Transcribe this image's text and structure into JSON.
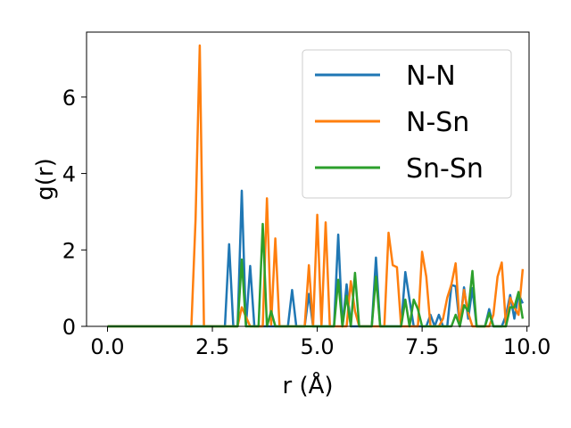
{
  "chart_data": {
    "type": "line",
    "title": "",
    "xlabel": "r (Å)",
    "ylabel": "g(r)",
    "xlim": [
      -0.5,
      10.05
    ],
    "ylim": [
      0,
      7.7
    ],
    "xticks": [
      0.0,
      2.5,
      5.0,
      7.5,
      10.0
    ],
    "xtick_labels": [
      "0.0",
      "2.5",
      "5.0",
      "7.5",
      "10.0"
    ],
    "yticks": [
      0,
      2,
      4,
      6
    ],
    "ytick_labels": [
      "0",
      "2",
      "4",
      "6"
    ],
    "grid": false,
    "legend_position": "top-right",
    "series": [
      {
        "name": "N-N",
        "color": "#1f77b4",
        "x": [
          0.0,
          2.8,
          2.9,
          3.0,
          3.1,
          3.2,
          3.3,
          3.4,
          3.5,
          4.3,
          4.4,
          4.5,
          4.7,
          4.8,
          4.9,
          5.4,
          5.5,
          5.6,
          5.7,
          5.8,
          6.3,
          6.4,
          6.5,
          7.0,
          7.1,
          7.2,
          7.3,
          7.6,
          7.7,
          7.8,
          7.9,
          8.0,
          8.1,
          8.2,
          8.3,
          8.4,
          8.5,
          8.6,
          8.7,
          8.8,
          8.9,
          9.0,
          9.1,
          9.2,
          9.3,
          9.4,
          9.5,
          9.6,
          9.7,
          9.8,
          9.9
        ],
        "y": [
          0,
          0,
          2.15,
          0,
          0,
          3.55,
          0,
          1.58,
          0,
          0,
          0.95,
          0,
          0,
          0.85,
          0,
          0,
          2.4,
          0,
          1.1,
          0,
          0,
          1.8,
          0,
          0,
          1.42,
          0.7,
          0,
          0,
          0.3,
          0,
          0.3,
          0,
          0,
          1.08,
          1.05,
          0,
          1.02,
          0.2,
          1.0,
          0,
          0,
          0,
          0.45,
          0,
          0,
          0,
          0.28,
          0.82,
          0.2,
          0.85,
          0.6
        ]
      },
      {
        "name": "N-Sn",
        "color": "#ff7f0e",
        "x": [
          0.0,
          2.0,
          2.1,
          2.2,
          2.3,
          3.0,
          3.1,
          3.2,
          3.4,
          3.5,
          3.6,
          3.7,
          3.8,
          3.9,
          4.0,
          4.1,
          4.7,
          4.8,
          4.9,
          5.0,
          5.1,
          5.2,
          5.3,
          5.4,
          5.5,
          5.6,
          5.7,
          5.8,
          5.9,
          6.0,
          6.6,
          6.7,
          6.8,
          6.9,
          7.0,
          7.4,
          7.5,
          7.6,
          7.7,
          7.8,
          7.9,
          8.0,
          8.1,
          8.2,
          8.3,
          8.4,
          8.5,
          8.6,
          8.7,
          8.8,
          8.9,
          9.0,
          9.1,
          9.2,
          9.3,
          9.4,
          9.5,
          9.6,
          9.7,
          9.8,
          9.9
        ],
        "y": [
          0,
          0,
          2.8,
          7.35,
          0,
          0,
          0,
          0.5,
          0,
          0,
          0,
          0,
          3.35,
          0.05,
          2.3,
          0,
          0,
          1.6,
          0,
          2.92,
          0,
          2.72,
          0,
          0,
          0,
          0,
          0,
          1.18,
          0.4,
          0,
          0,
          2.45,
          1.6,
          1.55,
          0,
          0,
          1.95,
          1.3,
          0,
          0,
          0,
          0.2,
          0.75,
          1.1,
          1.65,
          0,
          0.95,
          0.35,
          0,
          0,
          0,
          0,
          0,
          0.3,
          1.3,
          1.67,
          0,
          0.75,
          0.5,
          0.3,
          1.5
        ]
      },
      {
        "name": "Sn-Sn",
        "color": "#2ca02c",
        "x": [
          0.0,
          3.1,
          3.2,
          3.3,
          3.6,
          3.7,
          3.8,
          3.9,
          4.0,
          5.3,
          5.4,
          5.5,
          5.6,
          5.7,
          5.8,
          5.9,
          6.0,
          6.3,
          6.4,
          6.5,
          7.0,
          7.1,
          7.2,
          7.3,
          7.4,
          7.5,
          7.6,
          8.2,
          8.3,
          8.4,
          8.5,
          8.6,
          8.7,
          8.8,
          8.9,
          9.0,
          9.1,
          9.2,
          9.3,
          9.4,
          9.5,
          9.6,
          9.7,
          9.8,
          9.9
        ],
        "y": [
          0,
          0,
          1.75,
          0,
          0,
          2.68,
          0,
          0.4,
          0,
          0,
          0,
          1.22,
          0,
          0.8,
          0,
          1.4,
          0,
          0,
          1.3,
          0,
          0,
          0.7,
          0,
          0.7,
          0.45,
          0,
          0,
          0,
          0.3,
          0,
          0.55,
          0.4,
          1.45,
          0,
          0,
          0,
          0.35,
          0,
          0,
          0,
          0,
          0.5,
          0.5,
          0.9,
          0.2
        ]
      }
    ]
  }
}
